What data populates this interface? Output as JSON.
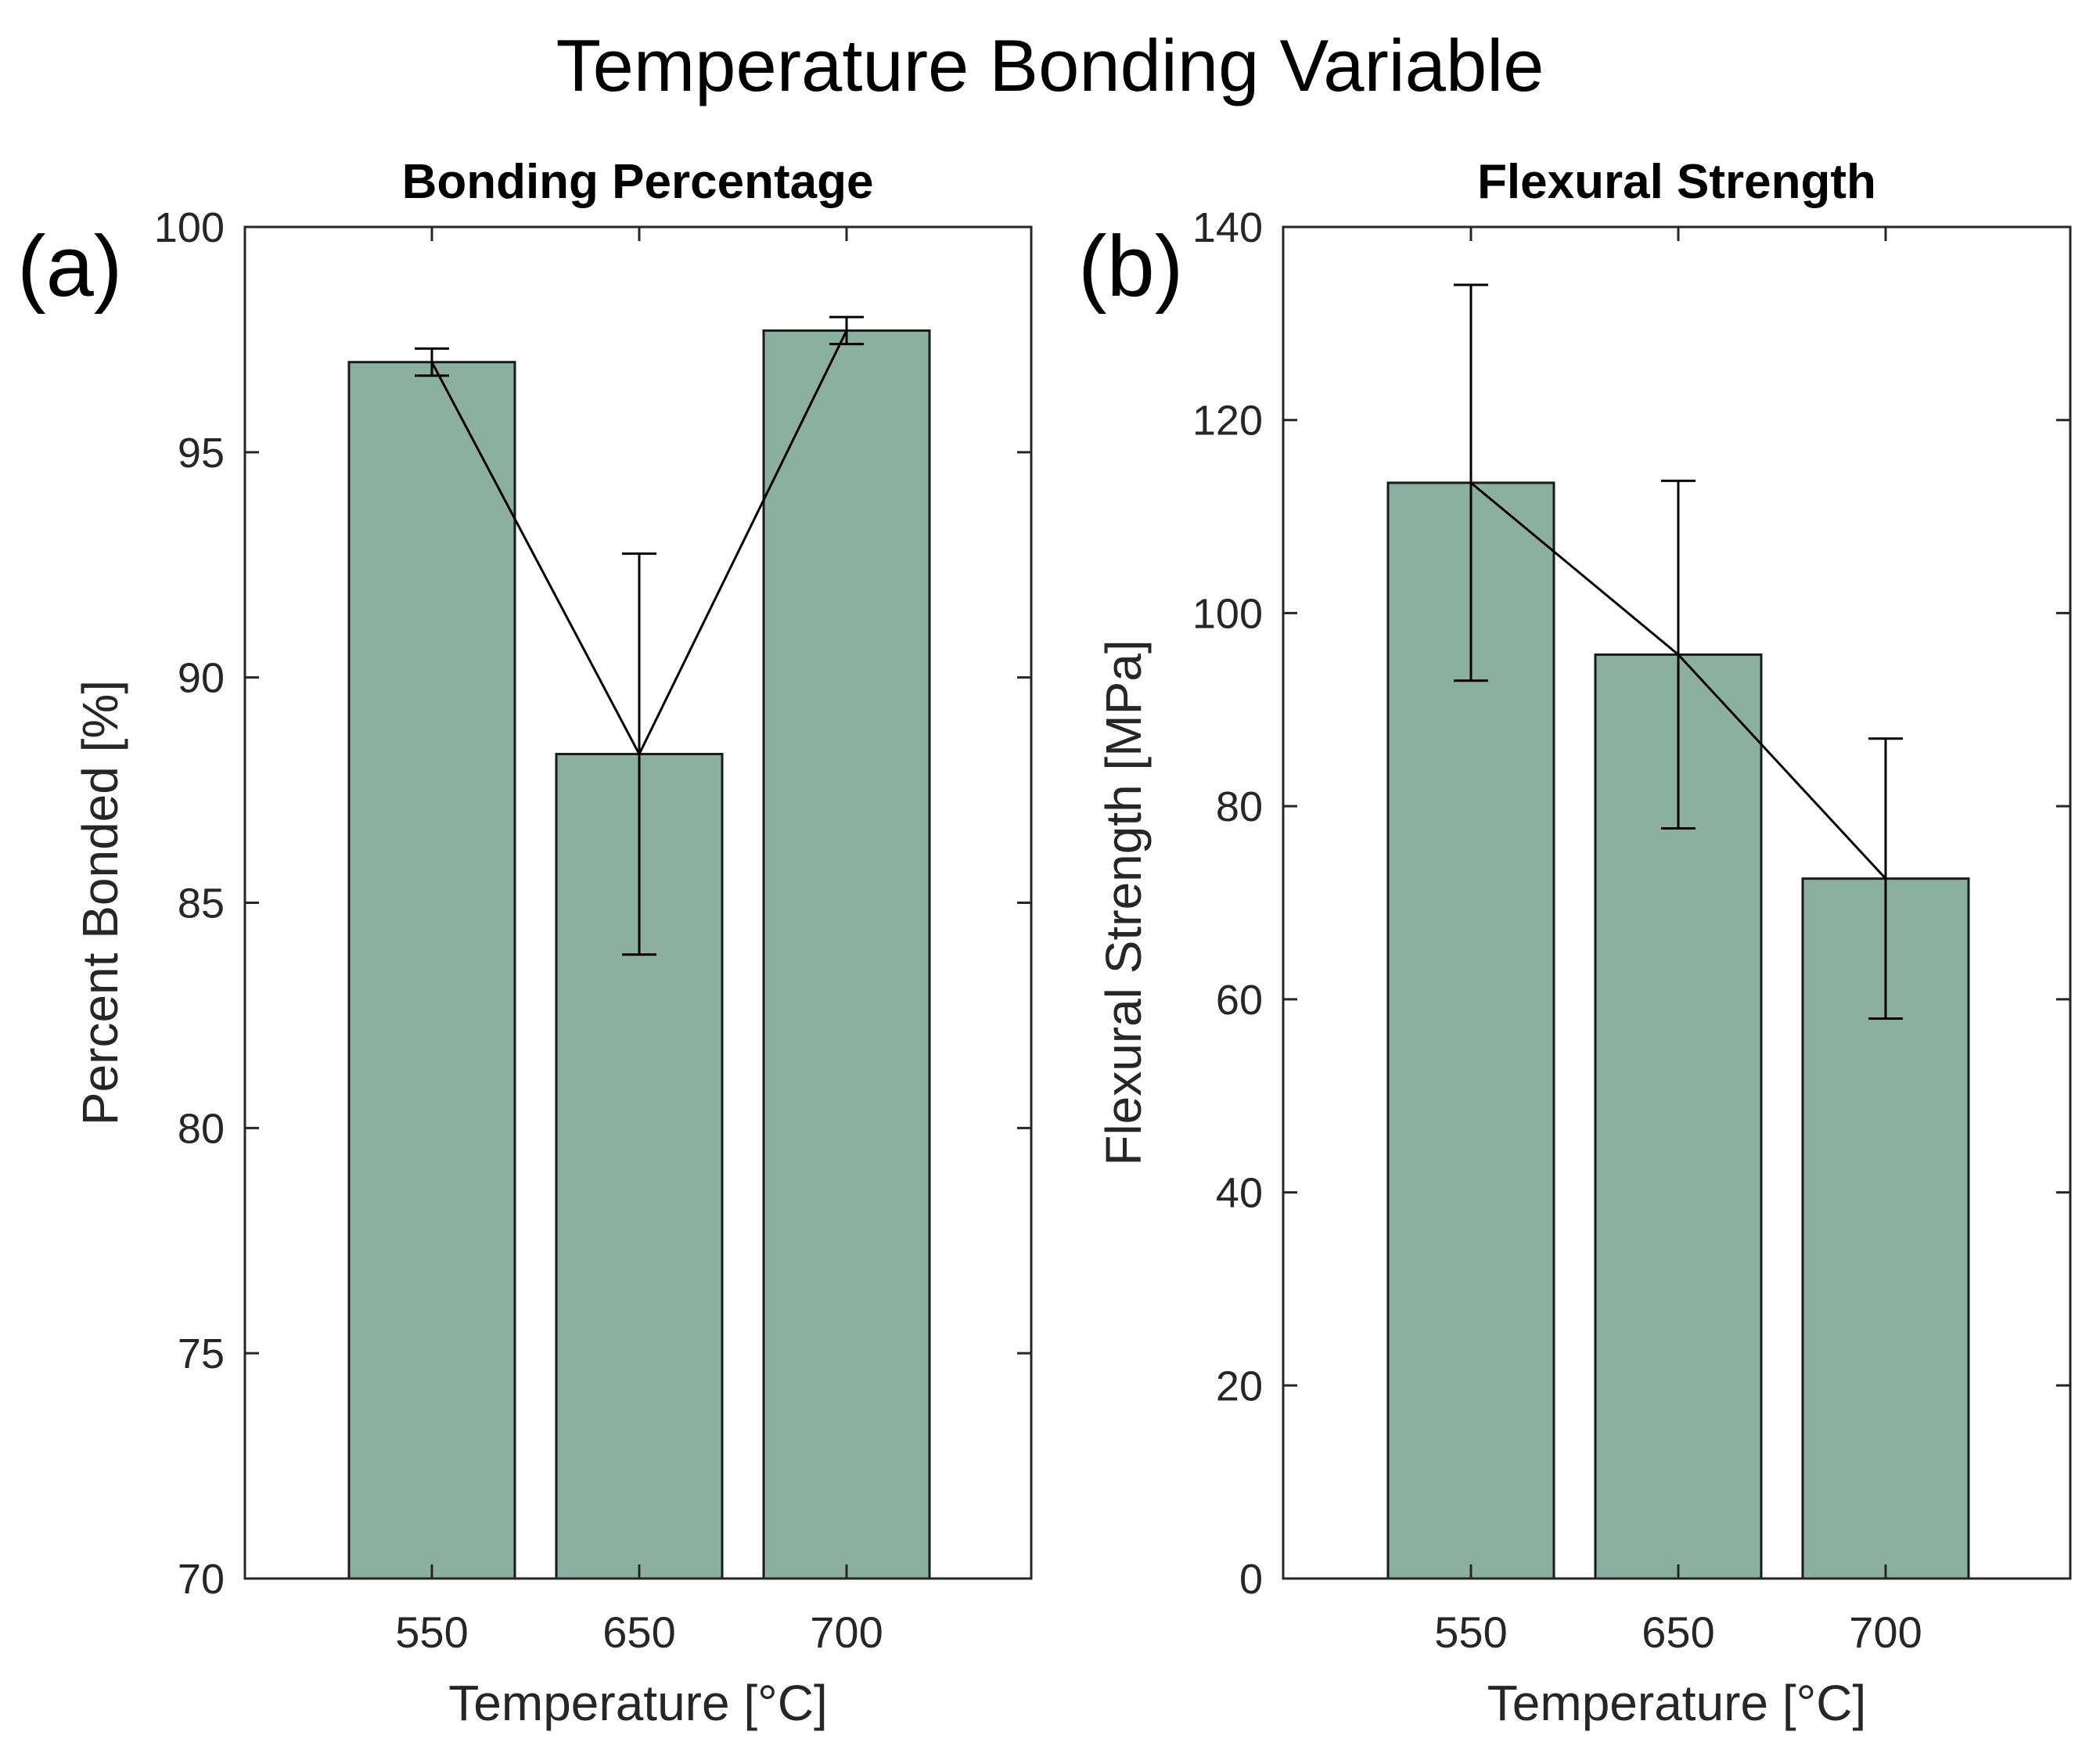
{
  "figure_title": "Temperature Bonding Variable",
  "colors": {
    "bar": "#8bb0a1",
    "edge": "#1a1a1a",
    "axis": "#262626"
  },
  "chart_data": [
    {
      "type": "bar",
      "panel_label": "(a)",
      "title": "Bonding Percentage",
      "categories": [
        "550",
        "650",
        "700"
      ],
      "values": [
        97.0,
        88.3,
        97.7
      ],
      "errors": [
        0.3,
        4.45,
        0.3
      ],
      "line_connects_means": true,
      "xlabel": "Temperature [°C]",
      "ylabel": "Percent Bonded [%]",
      "ylim": [
        70,
        100
      ],
      "yticks": [
        70,
        75,
        80,
        85,
        90,
        95,
        100
      ],
      "grid": false
    },
    {
      "type": "bar",
      "panel_label": "(b)",
      "title": "Flexural Strength",
      "categories": [
        "550",
        "650",
        "700"
      ],
      "values": [
        113.5,
        95.7,
        72.5
      ],
      "errors": [
        20.5,
        18.0,
        14.5
      ],
      "line_connects_means": true,
      "xlabel": "Temperature [°C]",
      "ylabel": "Flexural Strength [MPa]",
      "ylim": [
        0,
        140
      ],
      "yticks": [
        0,
        20,
        40,
        60,
        80,
        100,
        120,
        140
      ],
      "grid": false
    }
  ]
}
